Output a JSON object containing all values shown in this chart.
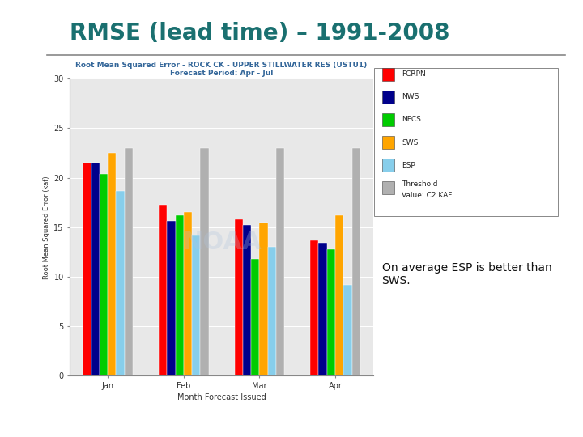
{
  "title": "RMSE (lead time) – 1991-2008",
  "title_color": "#1a7070",
  "chart_title": "Root Mean Squared Error - ROCK CK - UPPER STILLWATER RES (USTU1)",
  "chart_subtitle": "Forecast Period: Apr - Jul",
  "xlabel": "Month Forecast Issued",
  "ylabel": "Root Mean Squared Error (kaf)",
  "categories": [
    "Jan",
    "Feb",
    "Mar",
    "Apr"
  ],
  "series": {
    "FCRPN": [
      21.5,
      17.3,
      15.8,
      13.7
    ],
    "NWS": [
      21.5,
      15.6,
      15.2,
      13.4
    ],
    "NFCS": [
      20.4,
      16.2,
      11.8,
      12.8
    ],
    "SWS": [
      22.5,
      16.5,
      15.5,
      16.2
    ],
    "ESP": [
      18.7,
      14.2,
      13.0,
      9.2
    ],
    "Threshold\nValue: C2 KAF": [
      23.0,
      23.0,
      23.0,
      23.0
    ]
  },
  "colors": {
    "FCRPN": "#ff0000",
    "NWS": "#00008b",
    "NFCS": "#00cc00",
    "SWS": "#ffa500",
    "ESP": "#87ceeb",
    "Threshold\nValue: C2 KAF": "#b0b0b0"
  },
  "ylim": [
    0,
    30
  ],
  "yticks": [
    0,
    5,
    10,
    15,
    20,
    25,
    30
  ],
  "annotation": "On average ESP is better than\nSWS.",
  "background_color": "#ffffff",
  "chart_bg_color": "#e8e8e8"
}
